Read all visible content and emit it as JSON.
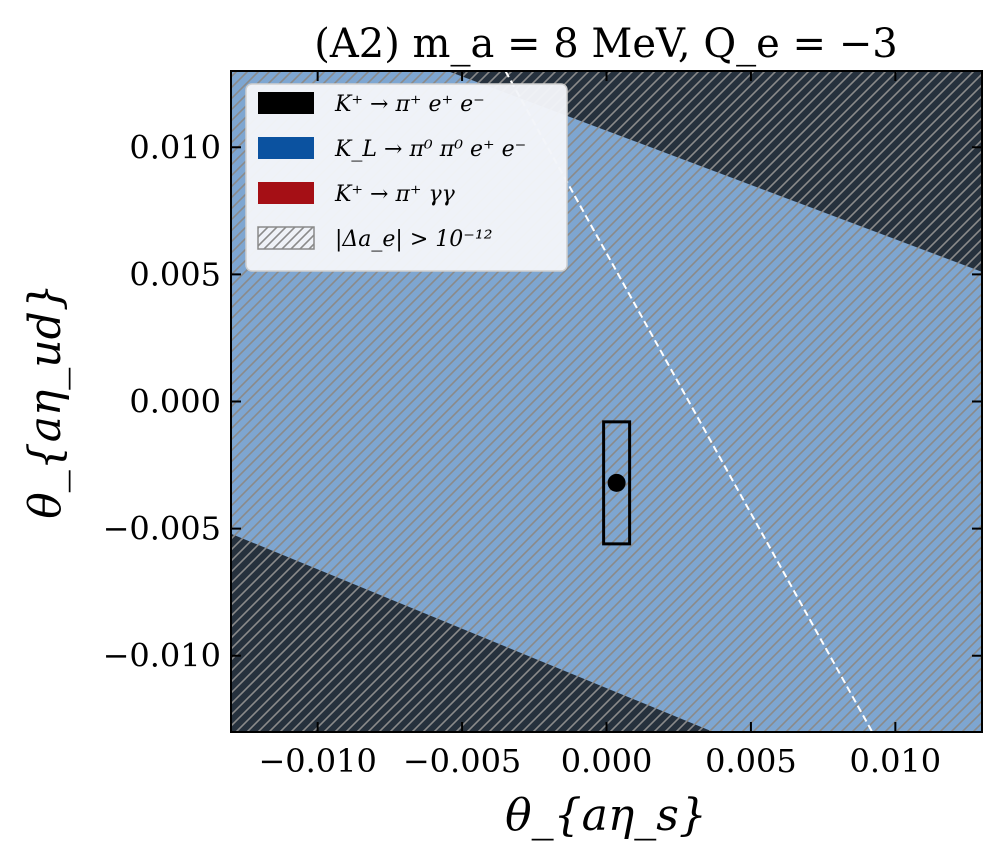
{
  "chart_data": {
    "type": "area",
    "title": "(A2) m_a = 8 MeV, Q_e = −3",
    "xlabel": "θ_{aη_s}",
    "ylabel": "θ_{aη_ud}",
    "xlim": [
      -0.013,
      0.013
    ],
    "ylim": [
      -0.013,
      0.013
    ],
    "xticks": [
      -0.01,
      -0.005,
      0.0,
      0.005,
      0.01
    ],
    "xtick_labels": [
      "−0.010",
      "−0.005",
      "0.000",
      "0.005",
      "0.010"
    ],
    "yticks": [
      0.01,
      0.005,
      0.0,
      -0.005,
      -0.01
    ],
    "ytick_labels": [
      "0.010",
      "0.005",
      "0.000",
      "−0.005",
      "−0.010"
    ],
    "grid": false,
    "legend_position": "top-left",
    "series": [
      {
        "name": "K⁺ → π⁺ e⁺ e⁻",
        "color": "#000000",
        "regions": [
          [
            [
              -0.0055,
              0.013
            ],
            [
              0.013,
              0.013
            ],
            [
              0.013,
              0.0051
            ]
          ],
          [
            [
              -0.013,
              -0.0052
            ],
            [
              -0.013,
              -0.013
            ],
            [
              0.0037,
              -0.013
            ]
          ]
        ]
      },
      {
        "name": "K_L → π⁰ π⁰ e⁺ e⁻",
        "color": "#0b52a0",
        "regions": [
          [
            [
              -0.013,
              0.013
            ],
            [
              0.013,
              0.013
            ],
            [
              0.013,
              -0.013
            ],
            [
              -0.013,
              -0.013
            ]
          ]
        ]
      },
      {
        "name": "K⁺ → π⁺ γγ",
        "color": "#a50f15",
        "regions": []
      },
      {
        "name": "|Δa_e| > 10⁻¹²",
        "pattern": "hatch",
        "color": "#888888",
        "regions": [
          [
            [
              -0.013,
              0.013
            ],
            [
              0.013,
              0.013
            ],
            [
              0.013,
              -0.013
            ],
            [
              -0.013,
              -0.013
            ]
          ]
        ]
      }
    ],
    "dashed_line": {
      "color": "#ffffff",
      "points": [
        [
          -0.0035,
          0.013
        ],
        [
          0.0092,
          -0.013
        ]
      ]
    },
    "central_point": {
      "x": 0.00035,
      "y": -0.0032
    },
    "error_box": {
      "x": [
        -0.0001,
        0.0008
      ],
      "y": [
        -0.0056,
        -0.0008
      ]
    }
  }
}
